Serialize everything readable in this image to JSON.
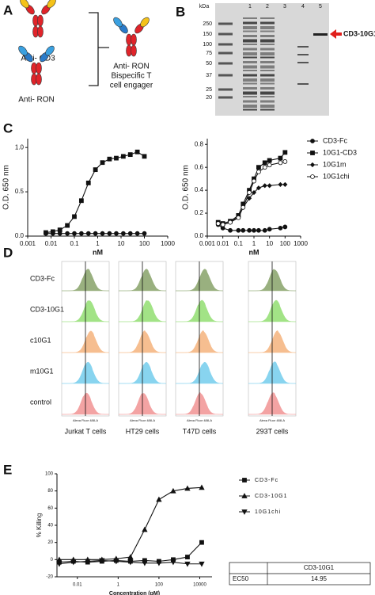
{
  "panel_labels": [
    "A",
    "B",
    "C",
    "D",
    "E"
  ],
  "panel_a": {
    "antibodies": [
      "Anti- CD3",
      "Anti- RON"
    ],
    "product": [
      "Anti- RON",
      "Bispecific T",
      "cell engager"
    ]
  },
  "panel_b": {
    "unit": "kDa",
    "lanes": [
      "1",
      "2",
      "3",
      "4",
      "5"
    ],
    "markers": [
      250,
      150,
      100,
      75,
      50,
      37,
      25,
      20
    ],
    "band_label": "CD3-10G1"
  },
  "chart_data": [
    {
      "type": "line",
      "ylabel": "O.D. 650 nm",
      "xlabel": "nM",
      "log_x": true,
      "xlim": [
        0.001,
        1000
      ],
      "xticks": [
        0.001,
        0.01,
        0.1,
        1,
        10,
        100,
        1000
      ],
      "ylim": [
        0,
        1.1
      ],
      "yticks": [
        {
          "value": 0,
          "label": "0.0"
        },
        {
          "value": 0.5,
          "label": "0.5"
        },
        {
          "value": 1,
          "label": "1.0"
        }
      ],
      "x": [
        0.006,
        0.012,
        0.024,
        0.05,
        0.1,
        0.2,
        0.4,
        0.8,
        1.6,
        3.2,
        6.25,
        12.5,
        25,
        50,
        100
      ],
      "series": [
        {
          "marker": "circle",
          "color": "#111111",
          "values": [
            0.03,
            0.03,
            0.03,
            0.03,
            0.03,
            0.03,
            0.03,
            0.03,
            0.03,
            0.03,
            0.03,
            0.03,
            0.03,
            0.03,
            0.03
          ]
        },
        {
          "marker": "square",
          "color": "#111111",
          "values": [
            0.04,
            0.05,
            0.07,
            0.12,
            0.22,
            0.4,
            0.6,
            0.75,
            0.83,
            0.87,
            0.88,
            0.9,
            0.92,
            0.95,
            0.9
          ]
        }
      ]
    },
    {
      "type": "line",
      "ylabel": "O.D. 650 nm",
      "xlabel": "nM",
      "log_x": true,
      "legend": "right",
      "xlim": [
        0.001,
        1000
      ],
      "xticks": [
        0.001,
        0.01,
        0.1,
        1,
        10,
        100,
        1000
      ],
      "ylim": [
        0,
        0.85
      ],
      "yticks": [
        {
          "value": 0,
          "label": "0.0"
        },
        {
          "value": 0.2,
          "label": "0.2"
        },
        {
          "value": 0.4,
          "label": "0.4"
        },
        {
          "value": 0.6,
          "label": "0.6"
        },
        {
          "value": 0.8,
          "label": "0.8"
        }
      ],
      "x": [
        0.005,
        0.01,
        0.03,
        0.1,
        0.2,
        0.5,
        1,
        2,
        5,
        10,
        50,
        100
      ],
      "series": [
        {
          "name": "CD3-Fc",
          "marker": "circle",
          "color": "#111111",
          "values": [
            0.1,
            0.07,
            0.05,
            0.05,
            0.05,
            0.05,
            0.05,
            0.05,
            0.05,
            0.06,
            0.07,
            0.08
          ]
        },
        {
          "name": "10G1-CD3",
          "marker": "square",
          "color": "#111111",
          "values": [
            0.12,
            0.11,
            0.13,
            0.18,
            0.28,
            0.4,
            0.5,
            0.6,
            0.64,
            0.66,
            0.68,
            0.73
          ]
        },
        {
          "name": "10G1m",
          "marker": "diamond",
          "color": "#111111",
          "values": [
            0.12,
            0.1,
            0.12,
            0.17,
            0.25,
            0.33,
            0.38,
            0.42,
            0.44,
            0.44,
            0.45,
            0.45
          ]
        },
        {
          "name": "10G1chi",
          "marker": "open-circle",
          "color": "#111111",
          "values": [
            0.11,
            0.1,
            0.12,
            0.16,
            0.25,
            0.38,
            0.48,
            0.56,
            0.6,
            0.62,
            0.64,
            0.65
          ]
        }
      ]
    },
    {
      "type": "line",
      "ylabel": "% Killing",
      "xlabel": "Concentration (pM)",
      "log_x": true,
      "legend": "right",
      "xlim": [
        0.001,
        40000
      ],
      "xticks": [
        0.01,
        1,
        100,
        10000
      ],
      "ylim": [
        -20,
        100
      ],
      "yticks": [
        -20,
        0,
        20,
        40,
        60,
        80,
        100
      ],
      "x": [
        0.0013,
        0.0064,
        0.032,
        0.16,
        0.8,
        4,
        20,
        100,
        500,
        2500,
        12500
      ],
      "series": [
        {
          "name": "CD3-Fc",
          "marker": "square",
          "color": "#111111",
          "values": [
            -3,
            -2,
            -3,
            -2,
            -1,
            -2,
            -1,
            -2,
            0,
            3,
            20
          ]
        },
        {
          "name": "CD3-10G1",
          "marker": "triangle",
          "color": "#111111",
          "values": [
            0,
            0,
            0,
            0,
            1,
            3,
            35,
            70,
            80,
            83,
            84
          ]
        },
        {
          "name": "10G1chi",
          "marker": "triangle-down",
          "color": "#111111",
          "values": [
            -5,
            -3,
            -2,
            -1,
            -2,
            -3,
            -4,
            -4,
            -3,
            -5,
            -5
          ]
        }
      ]
    }
  ],
  "panel_d": {
    "rows": [
      "CD3-Fc",
      "CD3-10G1",
      "c10G1",
      "m10G1",
      "control"
    ],
    "columns": [
      "Jurkat T cells",
      "HT29 cells",
      "T47D cells",
      "293T cells"
    ],
    "axis_label": "Alexa Fluor 488-A",
    "row_colors": [
      "#8fa872",
      "#98e07a",
      "#f6b884",
      "#7cd0ee",
      "#f29a9a"
    ]
  },
  "table_e": {
    "column": "CD3-10G1",
    "row_label": "EC50",
    "value": "14.95"
  }
}
